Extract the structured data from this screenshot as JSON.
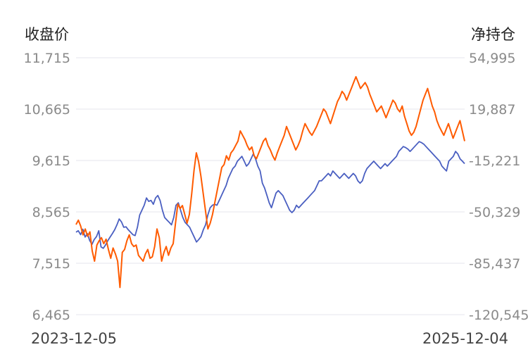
{
  "chart_data": {
    "type": "line",
    "left_axis_title": "收盘价",
    "right_axis_title": "净持仓",
    "left_ticks": [
      "11,715",
      "10,665",
      "9,615",
      "8,565",
      "7,515",
      "6,465"
    ],
    "right_ticks": [
      "54,995",
      "19,887",
      "-15,221",
      "-50,329",
      "-85,437",
      "-120,545"
    ],
    "ylim_left": [
      6465,
      11715
    ],
    "ylim_right": [
      -120545,
      54995
    ],
    "grid": true,
    "x_start_label": "2023-12-05",
    "x_end_label": "2025-12-04",
    "series": [
      {
        "color": "#4a5fc1",
        "axis": "left",
        "values": [
          8150,
          8180,
          8100,
          8210,
          8050,
          8120,
          7980,
          7900,
          8000,
          8060,
          8180,
          7850,
          7820,
          7890,
          7980,
          8050,
          8120,
          8200,
          8300,
          8420,
          8360,
          8250,
          8260,
          8200,
          8150,
          8100,
          8080,
          8250,
          8500,
          8600,
          8700,
          8850,
          8780,
          8800,
          8720,
          8850,
          8900,
          8800,
          8600,
          8450,
          8400,
          8350,
          8300,
          8450,
          8700,
          8750,
          8600,
          8450,
          8350,
          8300,
          8250,
          8150,
          8050,
          7950,
          8000,
          8060,
          8200,
          8300,
          8500,
          8650,
          8700,
          8720,
          8700,
          8800,
          8900,
          9000,
          9100,
          9250,
          9350,
          9450,
          9500,
          9600,
          9650,
          9700,
          9600,
          9500,
          9550,
          9650,
          9750,
          9650,
          9500,
          9400,
          9150,
          9050,
          8900,
          8750,
          8650,
          8800,
          8950,
          9000,
          8950,
          8900,
          8800,
          8700,
          8600,
          8550,
          8600,
          8700,
          8650,
          8700,
          8750,
          8800,
          8850,
          8900,
          8950,
          9000,
          9100,
          9200,
          9200,
          9250,
          9300,
          9350,
          9300,
          9400,
          9350,
          9300,
          9250,
          9300,
          9350,
          9300,
          9250,
          9300,
          9350,
          9300,
          9200,
          9150,
          9200,
          9350,
          9450,
          9500,
          9550,
          9600,
          9550,
          9500,
          9450,
          9500,
          9550,
          9500,
          9550,
          9600,
          9650,
          9700,
          9800,
          9850,
          9900,
          9880,
          9850,
          9800,
          9850,
          9900,
          9950,
          10000,
          9980,
          9950,
          9900,
          9850,
          9800,
          9750,
          9700,
          9650,
          9600,
          9500,
          9450,
          9400,
          9600,
          9650,
          9700,
          9800,
          9750,
          9650,
          9600,
          9550
        ]
      },
      {
        "color": "#ff5b00",
        "axis": "right",
        "values": [
          -59000,
          -56000,
          -60000,
          -66000,
          -62000,
          -67000,
          -64000,
          -77000,
          -84000,
          -73000,
          -70000,
          -68000,
          -72000,
          -69000,
          -76000,
          -82000,
          -75000,
          -79000,
          -84000,
          -102000,
          -78000,
          -76000,
          -70000,
          -66000,
          -72000,
          -74000,
          -73000,
          -80000,
          -82000,
          -84000,
          -79000,
          -76000,
          -82000,
          -81000,
          -74000,
          -62000,
          -68000,
          -84000,
          -78000,
          -74000,
          -80000,
          -75000,
          -72000,
          -58000,
          -45000,
          -48000,
          -46000,
          -52000,
          -58000,
          -52000,
          -38000,
          -22000,
          -10000,
          -16000,
          -26000,
          -38000,
          -50000,
          -62000,
          -58000,
          -52000,
          -44000,
          -36000,
          -28000,
          -20000,
          -18000,
          -12000,
          -15000,
          -10000,
          -8000,
          -5000,
          -2000,
          5000,
          2000,
          -1000,
          -5000,
          -8000,
          -6000,
          -12000,
          -14000,
          -10000,
          -6000,
          -2000,
          0,
          -5000,
          -8000,
          -12000,
          -15000,
          -10000,
          -6000,
          -2000,
          2000,
          8000,
          4000,
          0,
          -4000,
          -8000,
          -5000,
          -1000,
          5000,
          10000,
          7000,
          4000,
          2000,
          5000,
          8000,
          12000,
          16000,
          20000,
          18000,
          14000,
          10000,
          15000,
          20000,
          25000,
          28000,
          32000,
          30000,
          26000,
          30000,
          34000,
          38000,
          42000,
          38000,
          34000,
          36000,
          38000,
          35000,
          30000,
          26000,
          22000,
          18000,
          20000,
          22000,
          18000,
          14000,
          18000,
          22000,
          26000,
          24000,
          20000,
          18000,
          22000,
          15000,
          10000,
          5000,
          2000,
          4000,
          8000,
          14000,
          20000,
          26000,
          30000,
          34000,
          28000,
          22000,
          18000,
          12000,
          8000,
          5000,
          2000,
          6000,
          10000,
          5000,
          0,
          4000,
          8000,
          12000,
          5000,
          -2000
        ]
      }
    ]
  }
}
